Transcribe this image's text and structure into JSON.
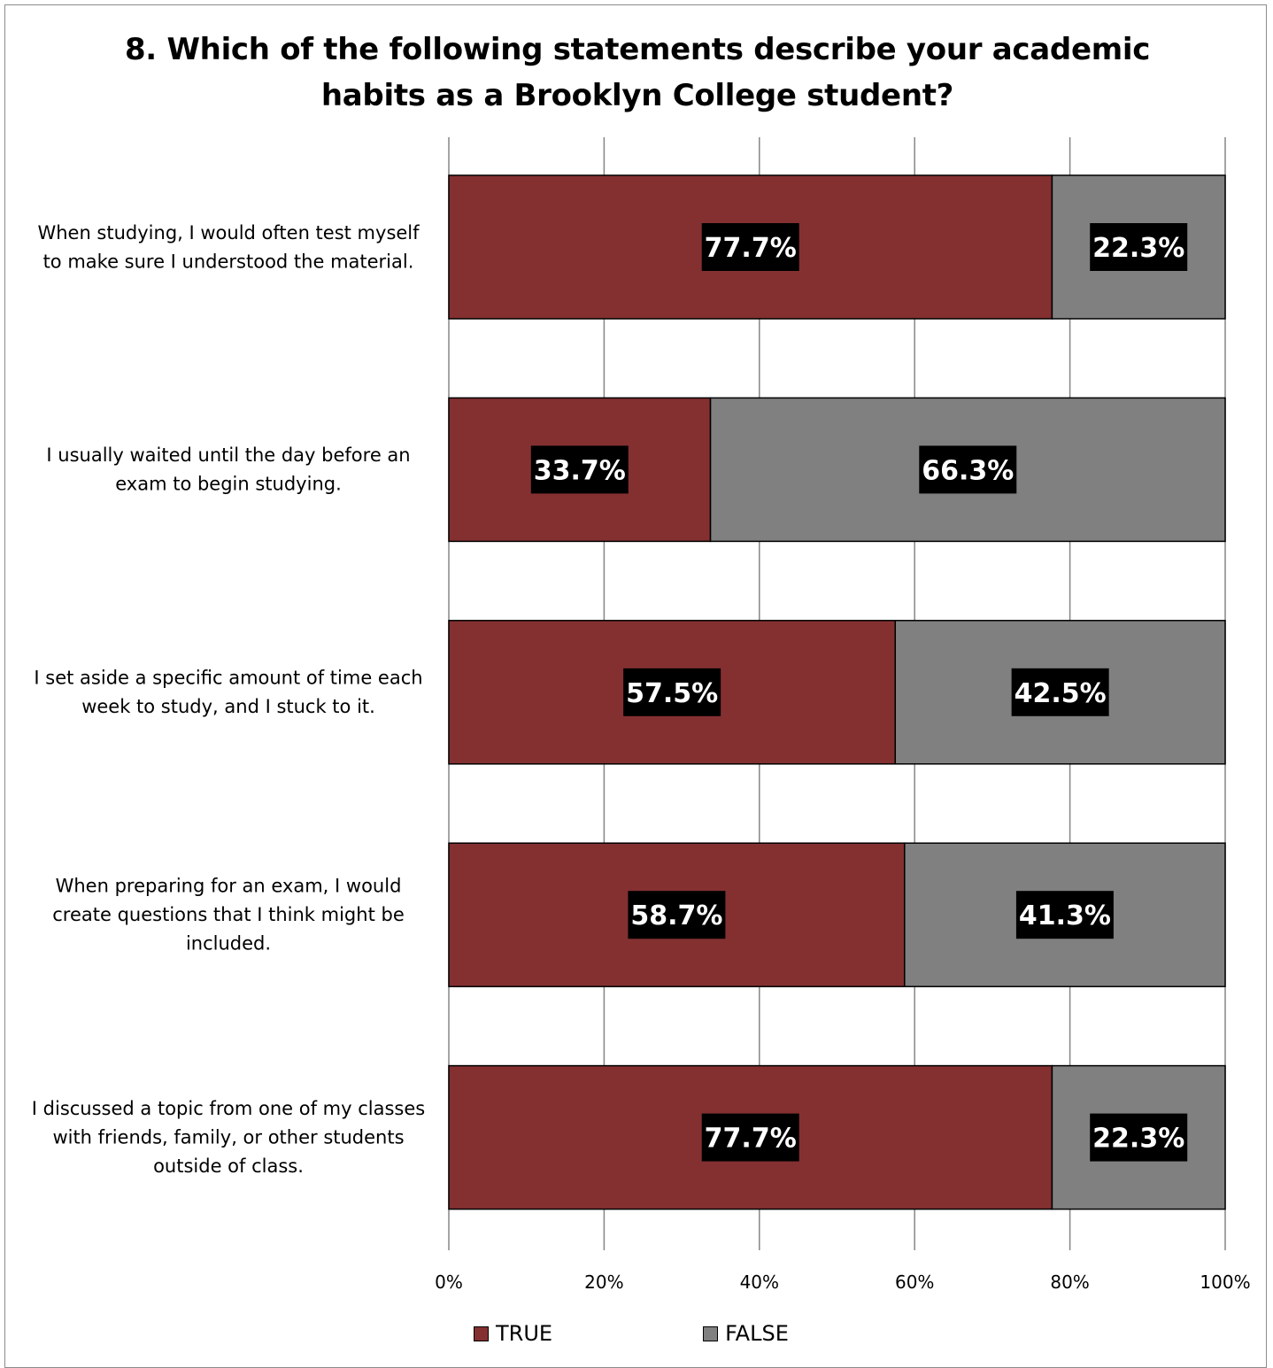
{
  "chart_data": {
    "type": "bar",
    "orientation": "horizontal",
    "stacked": true,
    "title_lines": [
      "8. Which of the following statements describe your academic",
      "habits as a Brooklyn College student?"
    ],
    "categories": [
      [
        "When studying, I would often test myself",
        "to make sure I understood the material."
      ],
      [
        "I usually waited until the day before an",
        "exam to begin studying."
      ],
      [
        "I set aside a specific amount of time each",
        "week to study, and I stuck to it."
      ],
      [
        "When preparing for an exam, I would",
        "create questions that I think might be",
        "included."
      ],
      [
        "I discussed a topic from one of my classes",
        "with friends, family, or other students",
        "outside of class."
      ]
    ],
    "series": [
      {
        "name": "TRUE",
        "color": "#843031",
        "values": [
          77.7,
          33.7,
          57.5,
          58.7,
          77.7
        ],
        "labels": [
          "77.7%",
          "33.7%",
          "57.5%",
          "58.7%",
          "77.7%"
        ]
      },
      {
        "name": "FALSE",
        "color": "#808080",
        "values": [
          22.3,
          66.3,
          42.5,
          41.3,
          22.3
        ],
        "labels": [
          "22.3%",
          "66.3%",
          "42.5%",
          "41.3%",
          "22.3%"
        ]
      }
    ],
    "xlim": [
      0,
      100
    ],
    "x_ticks": [
      "0%",
      "20%",
      "40%",
      "60%",
      "80%",
      "100%"
    ],
    "grid": true,
    "legend_position": "bottom",
    "data_label_background": "#000000"
  }
}
